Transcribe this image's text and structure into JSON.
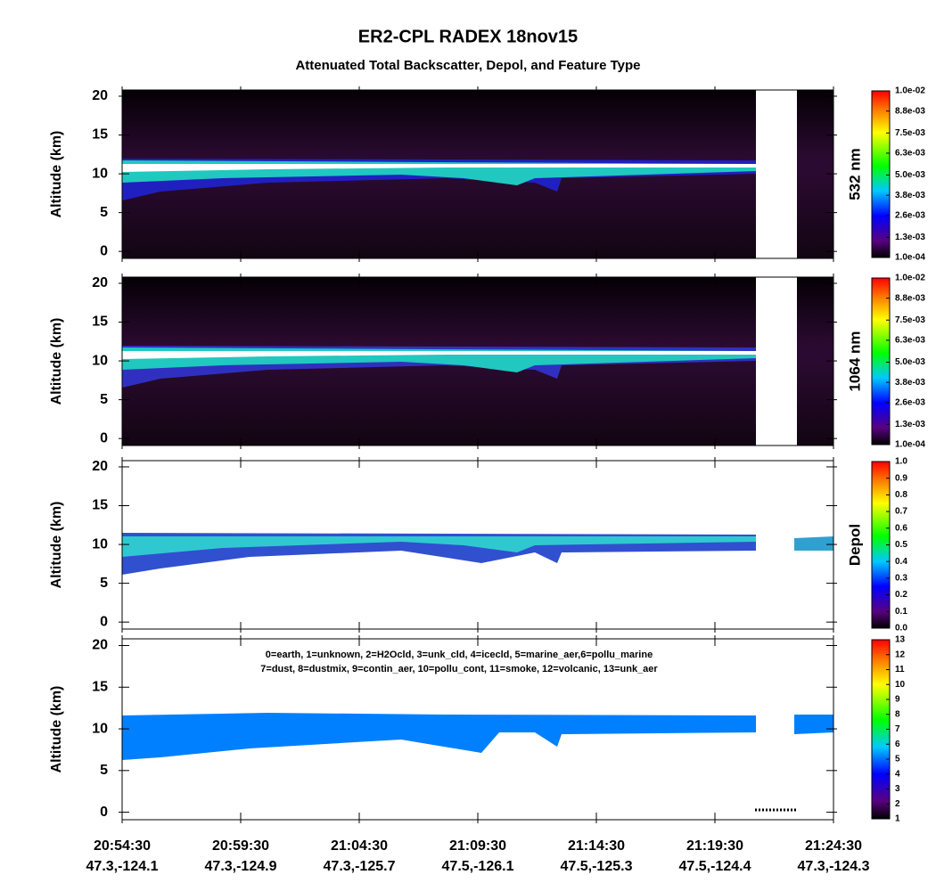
{
  "header": {
    "title": "ER2-CPL RADEX 18nov15",
    "subtitle": "Attenuated Total Backscatter, Depol, and Feature Type"
  },
  "chart_data": [
    {
      "type": "heatmap",
      "ylabel": "Altitude (km)",
      "ylim": [
        -0.9,
        20.8
      ],
      "yticks": [
        0,
        5,
        10,
        15,
        20
      ],
      "xlim": [
        75270,
        77070
      ],
      "xticks": [
        75270,
        75570,
        75870,
        76170,
        76470,
        76770,
        77070
      ],
      "colorbar": {
        "label": "532 nm",
        "lim": [
          0.0001,
          0.01
        ],
        "ticks": [
          {
            "value": 0.0001,
            "label": "1.0e-04"
          },
          {
            "value": 0.0013,
            "label": "1.3e-03"
          },
          {
            "value": 0.0026,
            "label": "2.6e-03"
          },
          {
            "value": 0.0038,
            "label": "3.8e-03"
          },
          {
            "value": 0.005,
            "label": "5.0e-03"
          },
          {
            "value": 0.0063,
            "label": "6.3e-03"
          },
          {
            "value": 0.0075,
            "label": "7.5e-03"
          },
          {
            "value": 0.0088,
            "label": "8.8e-03"
          },
          {
            "value": 0.01,
            "label": "1.0e-02"
          }
        ]
      }
    },
    {
      "type": "heatmap",
      "ylabel": "Altitude (km)",
      "ylim": [
        -0.9,
        20.8
      ],
      "yticks": [
        0,
        5,
        10,
        15,
        20
      ],
      "xlim": [
        75270,
        77070
      ],
      "xticks": [
        75270,
        75570,
        75870,
        76170,
        76470,
        76770,
        77070
      ],
      "colorbar": {
        "label": "1064 nm",
        "lim": [
          0.0001,
          0.01
        ],
        "ticks": [
          {
            "value": 0.0001,
            "label": "1.0e-04"
          },
          {
            "value": 0.0013,
            "label": "1.3e-03"
          },
          {
            "value": 0.0026,
            "label": "2.6e-03"
          },
          {
            "value": 0.0038,
            "label": "3.8e-03"
          },
          {
            "value": 0.005,
            "label": "5.0e-03"
          },
          {
            "value": 0.0063,
            "label": "6.3e-03"
          },
          {
            "value": 0.0075,
            "label": "7.5e-03"
          },
          {
            "value": 0.0088,
            "label": "8.8e-03"
          },
          {
            "value": 0.01,
            "label": "1.0e-02"
          }
        ]
      }
    },
    {
      "type": "heatmap",
      "ylabel": "Altitude (km)",
      "ylim": [
        -0.9,
        20.8
      ],
      "yticks": [
        0,
        5,
        10,
        15,
        20
      ],
      "xlim": [
        75270,
        77070
      ],
      "xticks": [
        75270,
        75570,
        75870,
        76170,
        76470,
        76770,
        77070
      ],
      "colorbar": {
        "label": "Depol",
        "lim": [
          0,
          1
        ],
        "ticks": [
          {
            "value": 0,
            "label": "0.0"
          },
          0.1,
          0.2,
          0.3,
          0.4,
          0.5,
          0.6,
          0.7,
          0.8,
          0.9,
          {
            "value": 1,
            "label": "1.0"
          }
        ]
      }
    },
    {
      "type": "heatmap",
      "ylabel": "Altitude (km)",
      "ylim": [
        -0.9,
        20.8
      ],
      "yticks": [
        0,
        5,
        10,
        15,
        20
      ],
      "xlim": [
        75270,
        77070
      ],
      "xticks": [
        {
          "value": 75270,
          "label": "20:54:30"
        },
        {
          "value": 75570,
          "label": "20:59:30"
        },
        {
          "value": 75870,
          "label": "21:04:30"
        },
        {
          "value": 76170,
          "label": "21:09:30"
        },
        {
          "value": 76470,
          "label": "21:14:30"
        },
        {
          "value": 76770,
          "label": "21:19:30"
        },
        {
          "value": 77070,
          "label": "21:24:30"
        }
      ],
      "xtick_sublabels": [
        "47.3,-124.1",
        "47.3,-124.9",
        "47.3,-125.7",
        "47.5,-126.1",
        "47.5,-125.3",
        "47.5,-124.4",
        "47.3,-124.3"
      ],
      "annotations": [
        "0=earth, 1=unknown, 2=H2Ocld, 3=unk_cld, 4=icecld, 5=marine_aer,6=pollu_marine",
        "7=dust, 8=dustmix, 9=contin_aer, 10=pollu_cont, 11=smoke, 12=volcanic, 13=unk_aer"
      ],
      "colorbar": {
        "label": "",
        "lim": [
          1,
          13
        ],
        "ticks": [
          1,
          2,
          3,
          4,
          5,
          6,
          7,
          8,
          9,
          10,
          11,
          12,
          13
        ]
      }
    }
  ]
}
